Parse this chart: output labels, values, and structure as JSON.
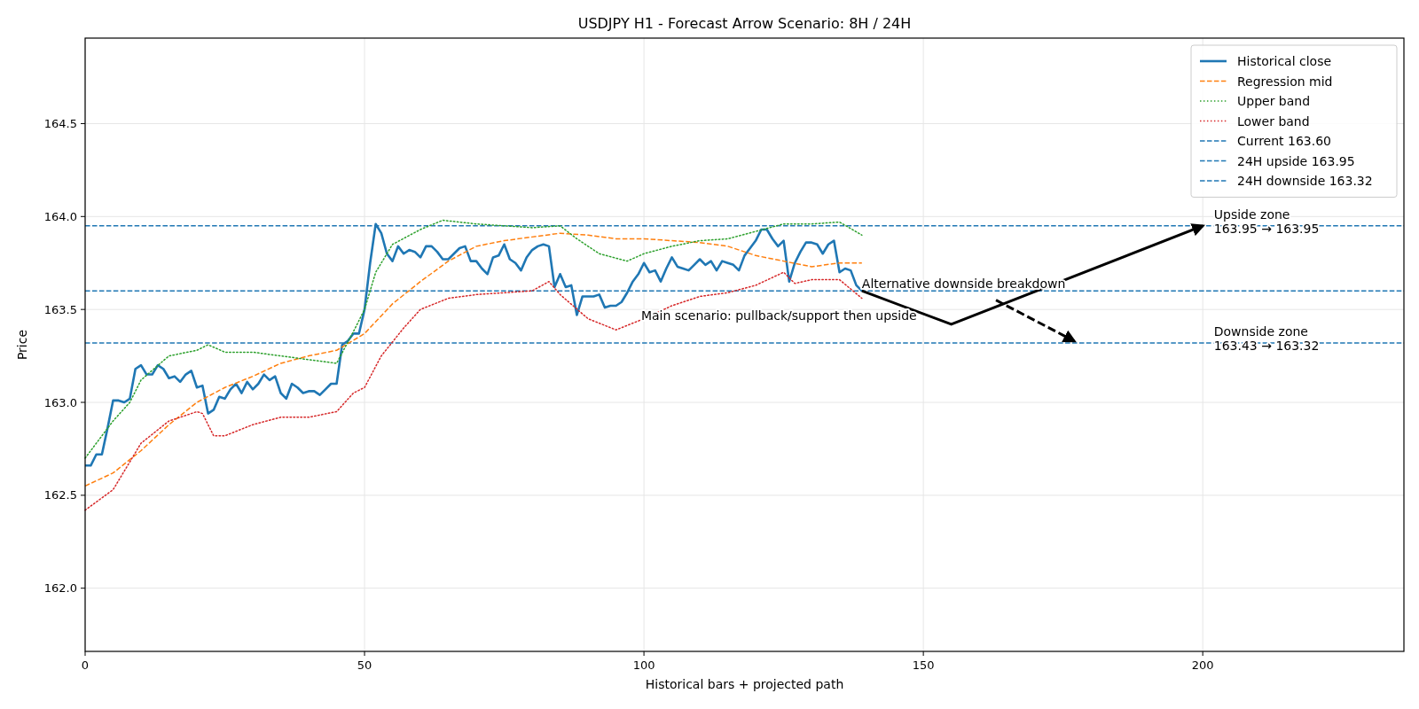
{
  "chart_data": {
    "type": "line",
    "title": "USDJPY H1 - Forecast Arrow Scenario: 8H / 24H",
    "xlabel": "Historical bars + projected path",
    "ylabel": "Price",
    "xlim": [
      0,
      236
    ],
    "ylim": [
      161.66,
      164.96
    ],
    "xticks": [
      0,
      50,
      100,
      150,
      200
    ],
    "yticks": [
      {
        "value": 162,
        "label": "162.0"
      },
      162.5,
      {
        "value": 163,
        "label": "163.0"
      },
      163.5,
      {
        "value": 164,
        "label": "164.0"
      },
      164.5
    ],
    "grid": true,
    "legend": "top right",
    "series": [
      {
        "name": "Historical close",
        "color": "#1f77b4",
        "line_style": "solid",
        "x": [
          0,
          1,
          2,
          3,
          4,
          5,
          6,
          7,
          8,
          9,
          10,
          11,
          12,
          13,
          14,
          15,
          16,
          17,
          18,
          19,
          20,
          21,
          22,
          23,
          24,
          25,
          26,
          27,
          28,
          29,
          30,
          31,
          32,
          33,
          34,
          35,
          36,
          37,
          38,
          39,
          40,
          41,
          42,
          43,
          44,
          45,
          46,
          47,
          48,
          49,
          50,
          51,
          52,
          53,
          54,
          55,
          56,
          57,
          58,
          59,
          60,
          61,
          62,
          63,
          64,
          65,
          66,
          67,
          68,
          69,
          70,
          71,
          72,
          73,
          74,
          75,
          76,
          77,
          78,
          79,
          80,
          81,
          82,
          83,
          84,
          85,
          86,
          87,
          88,
          89,
          90,
          91,
          92,
          93,
          94,
          95,
          96,
          97,
          98,
          99,
          100,
          101,
          102,
          103,
          104,
          105,
          106,
          107,
          108,
          109,
          110,
          111,
          112,
          113,
          114,
          115,
          116,
          117,
          118,
          119,
          120,
          121,
          122,
          123,
          124,
          125,
          126,
          127,
          128,
          129,
          130,
          131,
          132,
          133,
          134,
          135,
          136,
          137,
          138,
          139
        ],
        "values": [
          162.66,
          162.66,
          162.72,
          162.72,
          162.86,
          163.01,
          163.01,
          163.0,
          163.02,
          163.18,
          163.2,
          163.15,
          163.15,
          163.2,
          163.18,
          163.13,
          163.14,
          163.11,
          163.15,
          163.17,
          163.08,
          163.09,
          162.94,
          162.96,
          163.03,
          163.02,
          163.07,
          163.1,
          163.05,
          163.11,
          163.07,
          163.1,
          163.15,
          163.12,
          163.14,
          163.05,
          163.02,
          163.1,
          163.08,
          163.05,
          163.06,
          163.06,
          163.04,
          163.07,
          163.1,
          163.1,
          163.31,
          163.33,
          163.37,
          163.37,
          163.5,
          163.75,
          163.96,
          163.91,
          163.8,
          163.76,
          163.84,
          163.8,
          163.82,
          163.81,
          163.78,
          163.84,
          163.84,
          163.81,
          163.77,
          163.77,
          163.8,
          163.83,
          163.84,
          163.76,
          163.76,
          163.72,
          163.69,
          163.78,
          163.79,
          163.85,
          163.77,
          163.75,
          163.71,
          163.78,
          163.82,
          163.84,
          163.85,
          163.84,
          163.62,
          163.69,
          163.62,
          163.63,
          163.47,
          163.57,
          163.57,
          163.57,
          163.58,
          163.51,
          163.52,
          163.52,
          163.54,
          163.59,
          163.65,
          163.69,
          163.75,
          163.7,
          163.71,
          163.65,
          163.72,
          163.78,
          163.73,
          163.72,
          163.71,
          163.74,
          163.77,
          163.74,
          163.76,
          163.71,
          163.76,
          163.75,
          163.74,
          163.71,
          163.79,
          163.83,
          163.87,
          163.93,
          163.93,
          163.88,
          163.84,
          163.87,
          163.65,
          163.75,
          163.81,
          163.86,
          163.86,
          163.85,
          163.8,
          163.85,
          163.87,
          163.7,
          163.72,
          163.71,
          163.63,
          163.6
        ]
      },
      {
        "name": "Regression mid",
        "color": "#ff7f0e",
        "line_style": "dashed",
        "x": [
          0,
          5,
          10,
          15,
          20,
          25,
          30,
          35,
          40,
          45,
          50,
          55,
          60,
          65,
          70,
          75,
          80,
          85,
          90,
          95,
          100,
          105,
          110,
          115,
          120,
          125,
          130,
          135,
          139
        ],
        "values": [
          162.55,
          162.62,
          162.74,
          162.88,
          163.0,
          163.08,
          163.14,
          163.21,
          163.25,
          163.28,
          163.37,
          163.53,
          163.65,
          163.76,
          163.84,
          163.87,
          163.89,
          163.91,
          163.9,
          163.88,
          163.88,
          163.87,
          163.86,
          163.84,
          163.79,
          163.76,
          163.73,
          163.75,
          163.75
        ]
      },
      {
        "name": "Upper band",
        "color": "#2ca02c",
        "line_style": "dotted",
        "x": [
          0,
          5,
          8,
          10,
          15,
          20,
          22,
          25,
          30,
          35,
          40,
          45,
          48,
          50,
          52,
          55,
          60,
          64,
          70,
          75,
          80,
          85,
          88,
          92,
          97,
          100,
          105,
          110,
          115,
          120,
          125,
          130,
          135,
          139
        ],
        "values": [
          162.7,
          162.9,
          163.0,
          163.12,
          163.25,
          163.28,
          163.31,
          163.27,
          163.27,
          163.25,
          163.23,
          163.21,
          163.38,
          163.5,
          163.7,
          163.85,
          163.93,
          163.98,
          163.96,
          163.95,
          163.94,
          163.95,
          163.88,
          163.8,
          163.76,
          163.8,
          163.84,
          163.87,
          163.88,
          163.92,
          163.96,
          163.96,
          163.97,
          163.9
        ]
      },
      {
        "name": "Lower band",
        "color": "#d62728",
        "line_style": "dotted",
        "x": [
          0,
          5,
          10,
          15,
          20,
          21,
          23,
          25,
          30,
          35,
          40,
          45,
          48,
          50,
          53,
          57,
          60,
          65,
          70,
          75,
          80,
          83,
          85,
          90,
          95,
          100,
          105,
          110,
          115,
          120,
          125,
          127,
          130,
          135,
          139
        ],
        "values": [
          162.42,
          162.53,
          162.78,
          162.9,
          162.95,
          162.94,
          162.82,
          162.82,
          162.88,
          162.92,
          162.92,
          162.95,
          163.05,
          163.08,
          163.25,
          163.4,
          163.5,
          163.56,
          163.58,
          163.59,
          163.6,
          163.65,
          163.58,
          163.45,
          163.39,
          163.45,
          163.52,
          163.57,
          163.59,
          163.63,
          163.7,
          163.64,
          163.66,
          163.66,
          163.56
        ]
      },
      {
        "color": "#000000",
        "line_style": "solid",
        "x": [
          139,
          155,
          200
        ],
        "values": [
          163.6,
          163.42,
          163.95
        ]
      },
      {
        "color": "#000000",
        "line_style": "dashed",
        "x": [
          163,
          177
        ],
        "values": [
          163.55,
          163.33
        ]
      }
    ],
    "ref_lines": [
      {
        "axis": "y",
        "value": 163.6,
        "label": "Current 163.60",
        "color": "#1f77b4",
        "line_style": "dashed"
      },
      {
        "axis": "y",
        "value": 163.95,
        "label": "24H upside 163.95",
        "color": "#1f77b4",
        "line_style": "dashed"
      },
      {
        "axis": "y",
        "value": 163.32,
        "label": "24H downside 163.32",
        "color": "#1f77b4",
        "line_style": "dashed"
      }
    ],
    "annotations": [
      {
        "text": "Main scenario: pullback/support then upside",
        "x": 99.5,
        "y": 163.43
      },
      {
        "text": "Alternative downside breakdown",
        "x": 139,
        "y": 163.6
      },
      {
        "text": "Upside zone\n163.95 → 163.95",
        "x": 202,
        "y": 163.95
      },
      {
        "text": "Downside zone\n163.43 → 163.32",
        "x": 202,
        "y": 163.32
      }
    ]
  }
}
